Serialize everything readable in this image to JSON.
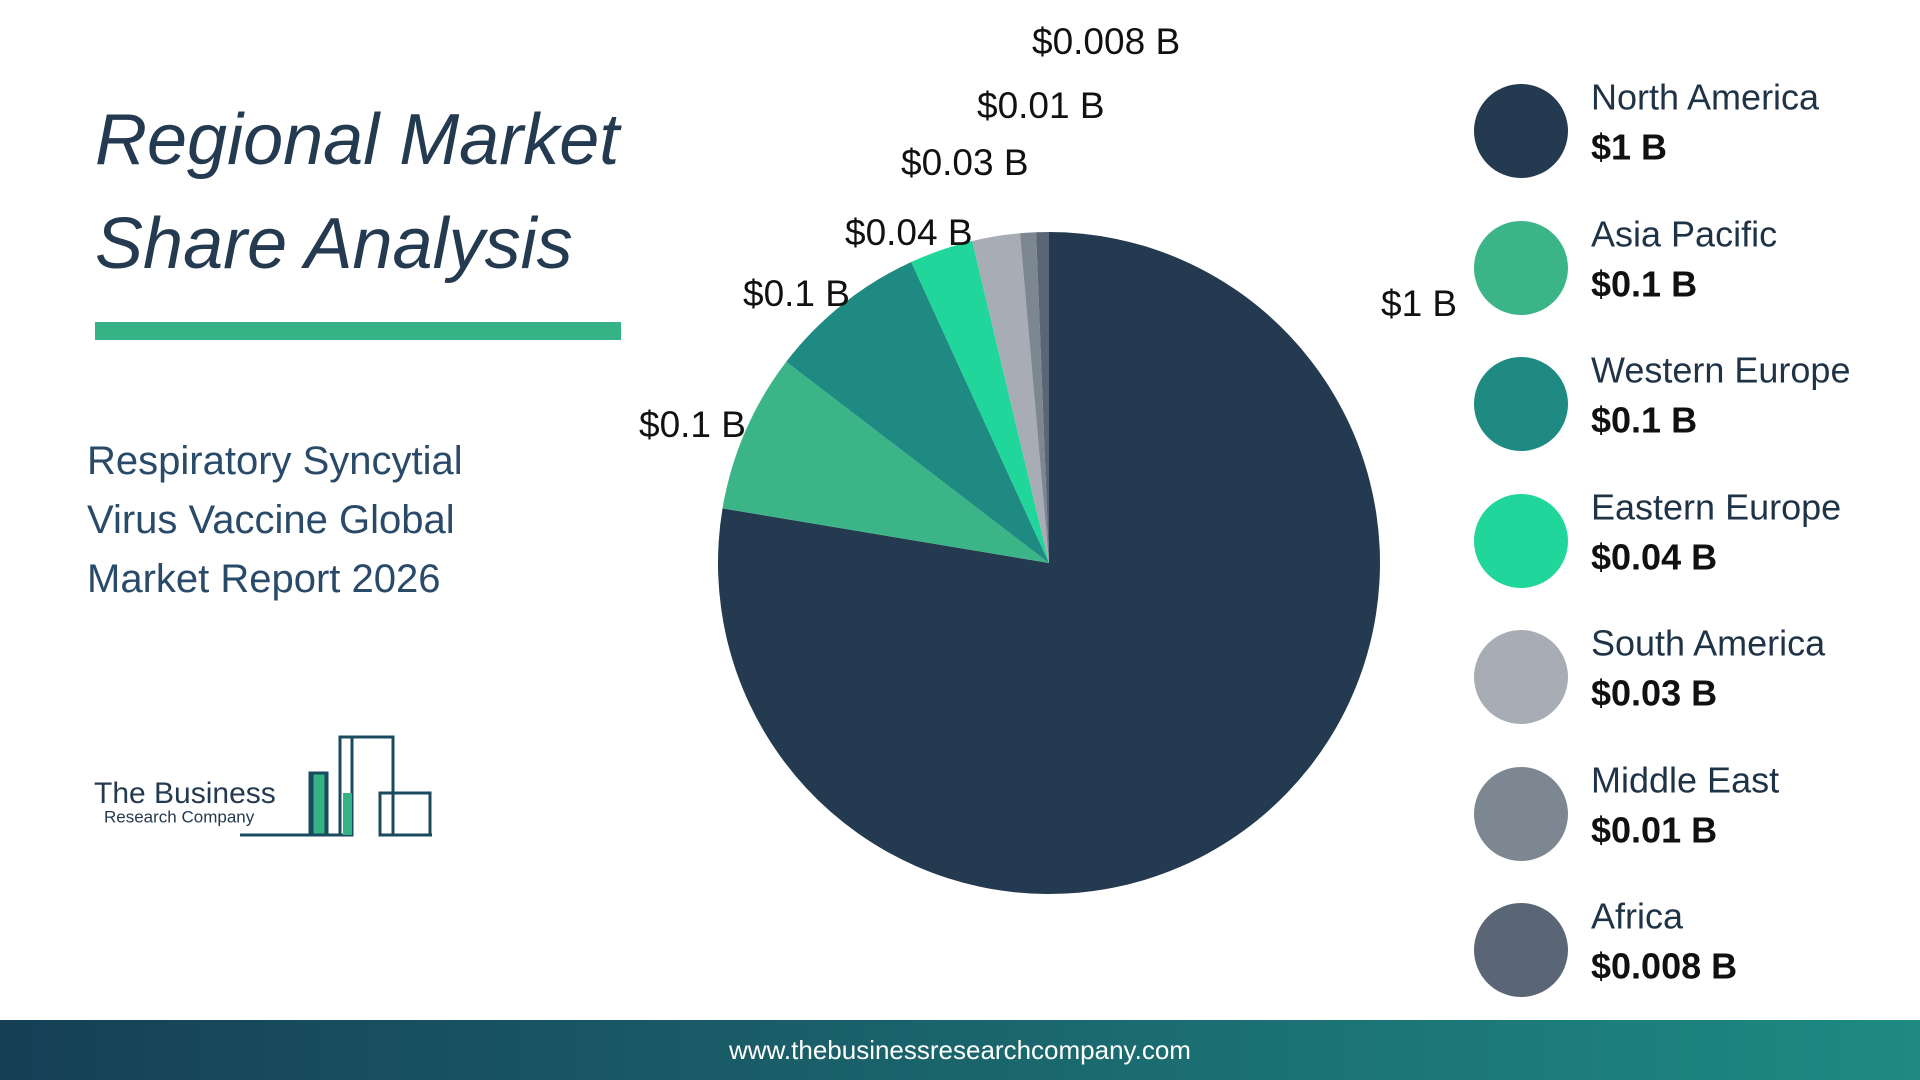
{
  "chart_data": {
    "type": "pie",
    "title": "Regional Market Share Analysis",
    "subtitle": "Respiratory Syncytial Virus Vaccine Global Market Report 2026",
    "categories": [
      "North America",
      "Asia Pacific",
      "Western Europe",
      "Eastern Europe",
      "South America",
      "Middle East",
      "Africa"
    ],
    "values": [
      1,
      0.1,
      0.1,
      0.04,
      0.03,
      0.01,
      0.008
    ],
    "value_labels": [
      "$1 B",
      "$0.1 B",
      "$0.1 B",
      "$0.04 B",
      "$0.03 B",
      "$0.01 B",
      "$0.008 B"
    ],
    "colors": [
      "#243a50",
      "#3bb588",
      "#1e8a82",
      "#20d69a",
      "#a8adb5",
      "#7d8792",
      "#5a6675"
    ]
  },
  "logo": {
    "line1": "The Business",
    "line2": "Research Company"
  },
  "footer": {
    "url": "www.thebusinessresearchcompany.com"
  }
}
